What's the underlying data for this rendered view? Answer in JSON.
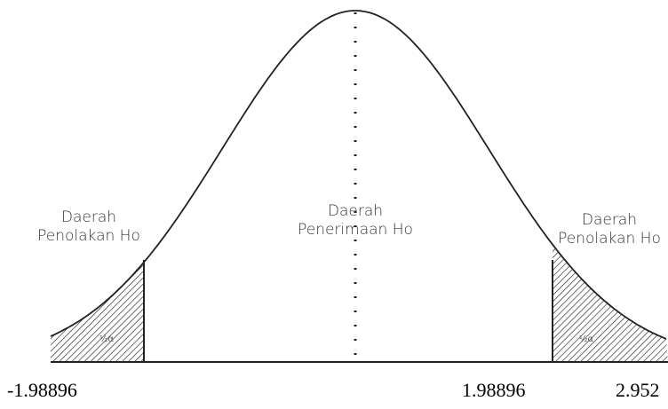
{
  "regions": [
    {
      "lines": [
        "Daerah",
        "Penolakan Ho"
      ]
    },
    {
      "lines": [
        "Daerah",
        "Penerimaan Ho"
      ]
    },
    {
      "lines": [
        "Daerah",
        "Penolakan Ho"
      ]
    }
  ],
  "tail_labels": [
    "½α",
    "½α"
  ],
  "critical_labels": [
    "-1.98896",
    "1.98896",
    "2.952"
  ]
}
